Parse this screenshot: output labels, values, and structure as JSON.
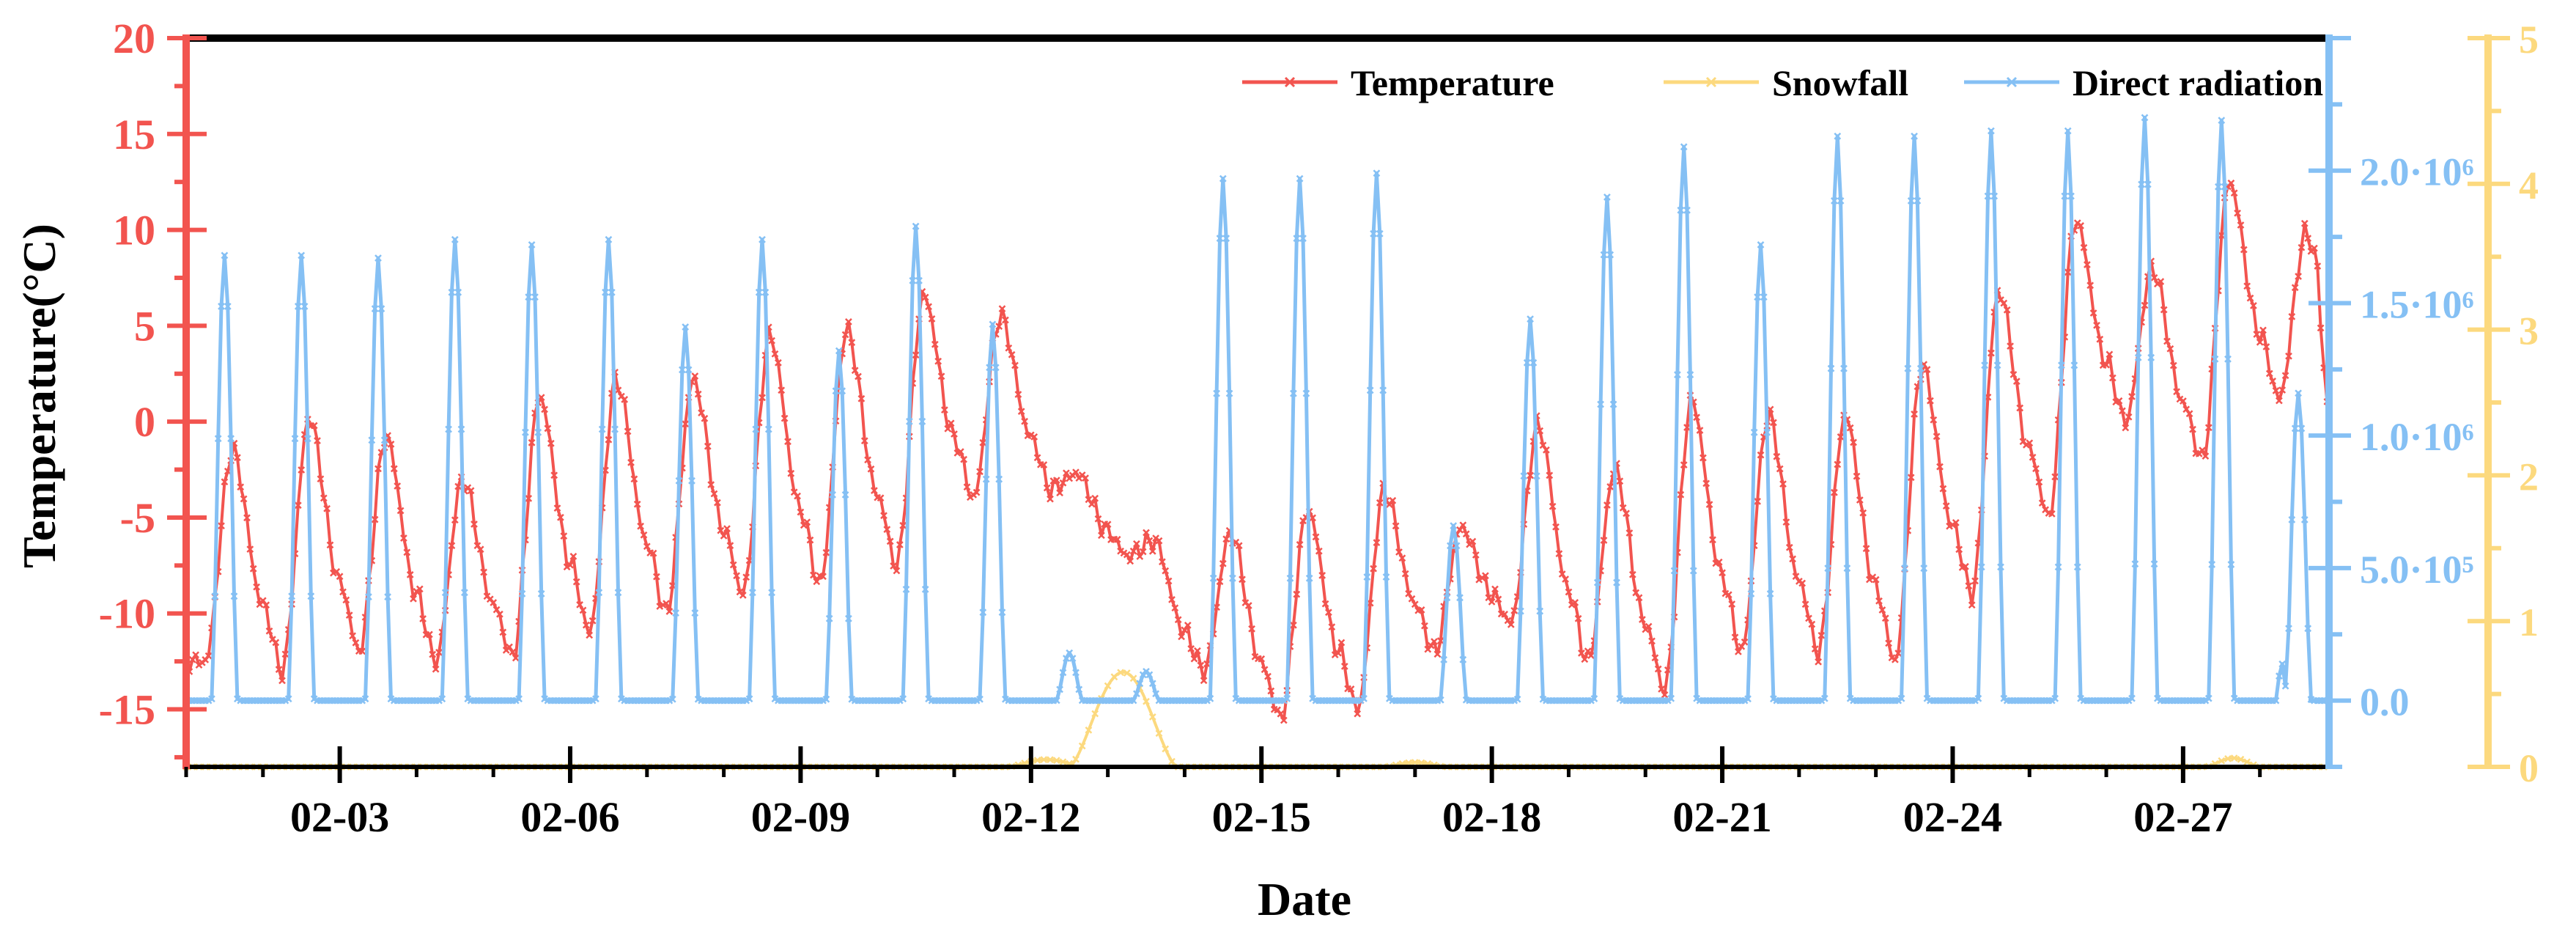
{
  "chart_data": {
    "type": "line",
    "xlabel": "Date",
    "ylabel": "Temperature(°C)",
    "colors": {
      "temperature": "#f2544f",
      "snowfall": "#fcd97e",
      "radiation": "#85c0f4",
      "frame": "#000000"
    },
    "x_range": [
      1,
      28.9
    ],
    "x_ticks": [
      {
        "value": 3,
        "label": "02-03"
      },
      {
        "value": 6,
        "label": "02-06"
      },
      {
        "value": 9,
        "label": "02-09"
      },
      {
        "value": 12,
        "label": "02-12"
      },
      {
        "value": 15,
        "label": "02-15"
      },
      {
        "value": 18,
        "label": "02-18"
      },
      {
        "value": 21,
        "label": "02-21"
      },
      {
        "value": 24,
        "label": "02-24"
      },
      {
        "value": 27,
        "label": "02-27"
      }
    ],
    "y_left": {
      "range": [
        -18,
        20
      ],
      "ticks": [
        {
          "value": 20,
          "label": "20"
        },
        {
          "value": 15,
          "label": "15"
        },
        {
          "value": 10,
          "label": "10"
        },
        {
          "value": 5,
          "label": "5"
        },
        {
          "value": 0,
          "label": "0"
        },
        {
          "value": -5,
          "label": "-5"
        },
        {
          "value": -10,
          "label": "-10"
        },
        {
          "value": -15,
          "label": "-15"
        }
      ]
    },
    "y_right_radiation": {
      "range": [
        -250000,
        2500000
      ],
      "ticks": [
        {
          "value": 0,
          "label": "0.0"
        },
        {
          "value": 500000,
          "label": "5.0·10⁵"
        },
        {
          "value": 1000000,
          "label": "1.0·10⁶"
        },
        {
          "value": 1500000,
          "label": "1.5·10⁶"
        },
        {
          "value": 2000000,
          "label": "2.0·10⁶"
        }
      ]
    },
    "y_right_snowfall": {
      "range": [
        0,
        5
      ],
      "ticks": [
        {
          "value": 0,
          "label": "0"
        },
        {
          "value": 1,
          "label": "1"
        },
        {
          "value": 2,
          "label": "2"
        },
        {
          "value": 3,
          "label": "3"
        },
        {
          "value": 4,
          "label": "4"
        },
        {
          "value": 5,
          "label": "5"
        }
      ]
    },
    "legend": {
      "position": "top-right",
      "entries": [
        "Temperature",
        "Snowfall",
        "Direct radiation"
      ]
    },
    "series": [
      {
        "name": "Temperature",
        "axis": "left",
        "day_start": 1,
        "daily_min": [
          -12.5,
          -13,
          -12,
          -12.5,
          -12.3,
          -11,
          -10,
          -9,
          -8.5,
          -7.5,
          -4,
          -3.5,
          -7,
          -13,
          -15.5,
          -15,
          -12,
          -10.5,
          -12.5,
          -14,
          -12,
          -12,
          -12.5,
          -9,
          -5,
          0,
          -2,
          1.2
        ],
        "daily_max": [
          -1.5,
          0.2,
          -0.8,
          -3,
          1.3,
          2.2,
          2.2,
          4.5,
          4.8,
          6.6,
          5.5,
          -2.7,
          -6.2,
          -5.8,
          -4.6,
          -3.6,
          -5.5,
          -0.2,
          -2.5,
          1.1,
          0.3,
          0.3,
          2.9,
          6.8,
          10.5,
          8,
          12.5,
          9.8
        ],
        "end_value": 0.2
      },
      {
        "name": "Snowfall",
        "axis": "right-snowfall",
        "events": [
          {
            "start": 11.7,
            "end": 12.7,
            "peak": 0.05
          },
          {
            "start": 12.5,
            "end": 13.9,
            "peak": 0.65
          },
          {
            "start": 16.6,
            "end": 17.4,
            "peak": 0.03
          },
          {
            "start": 27.3,
            "end": 28.0,
            "peak": 0.06
          }
        ]
      },
      {
        "name": "Direct radiation",
        "axis": "right-radiation",
        "day_start": 1,
        "daily_peak": [
          1680000,
          1680000,
          1670000,
          1740000,
          1720000,
          1740000,
          1410000,
          1740000,
          1320000,
          1790000,
          1420000,
          180000,
          110000,
          1970000,
          1970000,
          1990000,
          660000,
          1440000,
          1900000,
          2090000,
          1720000,
          2130000,
          2130000,
          2150000,
          2150000,
          2200000,
          2190000,
          1160000
        ],
        "secondary_bumps": [
          {
            "day": 28,
            "peak": 140000
          }
        ]
      }
    ]
  }
}
